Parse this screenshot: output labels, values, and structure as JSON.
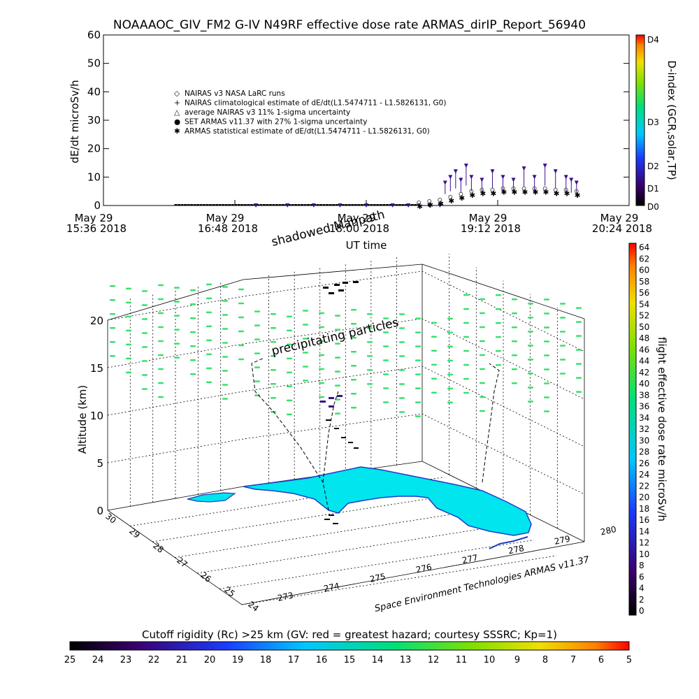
{
  "header": {
    "title": "NOAAAOC_GIV_FM2 G-IV    N49RF   effective dose rate ARMAS_dirIP_Report_56940"
  },
  "chart_data": [
    {
      "type": "scatter",
      "xlabel": "UT time",
      "ylabel": "dE/dt microSv/h",
      "ylim": [
        0,
        60
      ],
      "yticks": [
        "0",
        "10",
        "20",
        "30",
        "40",
        "50",
        "60"
      ],
      "xticks": [
        {
          "date": "May 29",
          "time": "15:36 2018"
        },
        {
          "date": "May 29",
          "time": "16:48 2018"
        },
        {
          "date": "May 29",
          "time": "18:00 2018"
        },
        {
          "date": "May 29",
          "time": "19:12 2018"
        },
        {
          "date": "May 29",
          "time": "20:24 2018"
        }
      ],
      "legend": [
        "NAIRAS v3 NASA LaRC runs",
        "NAIRAS climatological estimate of dE/dt(L1.5474711 - L1.5826131, G0)",
        "average NAIRAS v3 11% 1-sigma uncertainty",
        "SET ARMAS v11.37 with 27% 1-sigma uncertainty",
        "ARMAS statistical estimate of dE/dt(L1.5474711 - L1.5826131, G0)"
      ],
      "legend_position": "upper-left",
      "series": [
        {
          "name": "SET ARMAS v11.37 with 27% 1-sigma uncertainty",
          "x": [
            0.29,
            0.35,
            0.4,
            0.45,
            0.5,
            0.55,
            0.58,
            0.6,
            0.62,
            0.64,
            0.65,
            0.66,
            0.67,
            0.68,
            0.69,
            0.7,
            0.72,
            0.74,
            0.76,
            0.78,
            0.8,
            0.82,
            0.84,
            0.86,
            0.88,
            0.89,
            0.9
          ],
          "y": [
            0,
            0,
            0,
            0,
            0,
            0,
            0,
            0,
            0,
            0,
            8,
            10,
            12,
            9,
            14,
            10,
            9,
            12,
            10,
            9,
            13,
            10,
            14,
            12,
            10,
            9,
            8
          ],
          "color": "#3b0f8c"
        },
        {
          "name": "NAIRAS v3 NASA LaRC runs",
          "x": [
            0.6,
            0.62,
            0.64,
            0.66,
            0.68,
            0.7,
            0.72,
            0.74,
            0.76,
            0.78,
            0.8,
            0.82,
            0.84,
            0.86,
            0.88,
            0.9
          ],
          "y": [
            1,
            1.5,
            2,
            3,
            4,
            5,
            5.5,
            5.5,
            6,
            6,
            6,
            6,
            6,
            5.5,
            5.5,
            5
          ],
          "color": "#555555"
        }
      ]
    },
    {
      "type": "scatter",
      "zlabel": "Altitude (km)",
      "zticks": [
        "0",
        "5",
        "10",
        "15",
        "20"
      ],
      "lat_ticks": [
        "30",
        "29",
        "28",
        "27",
        "26",
        "25",
        "24"
      ],
      "lon_ticks": [
        "273",
        "274",
        "275",
        "276",
        "277",
        "278",
        "279",
        "280"
      ],
      "annotations": [
        "shadowed Mahpath",
        "precipitating particles"
      ],
      "credit": "Space Environment Technologies ARMAS v11.37"
    }
  ],
  "colorbars": {
    "dindex": {
      "label": "D-index (GCR,solar,TP)",
      "ticks": [
        "D4",
        "D3",
        "D2",
        "D1",
        "D0"
      ]
    },
    "dose": {
      "label": "flight effective dose rate microSv/h",
      "ticks": [
        "64",
        "62",
        "60",
        "58",
        "56",
        "54",
        "52",
        "50",
        "48",
        "46",
        "44",
        "42",
        "40",
        "38",
        "36",
        "34",
        "32",
        "30",
        "28",
        "26",
        "24",
        "22",
        "20",
        "18",
        "16",
        "14",
        "12",
        "10",
        "8",
        "6",
        "4",
        "2",
        "0"
      ]
    },
    "cutoff": {
      "label": "Cutoff rigidity (Rc) >25 km (GV: red = greatest hazard; courtesy SSSRC; Kp=1)",
      "ticks": [
        "25",
        "24",
        "23",
        "22",
        "21",
        "20",
        "19",
        "18",
        "17",
        "16",
        "15",
        "14",
        "13",
        "12",
        "11",
        "10",
        "9",
        "8",
        "7",
        "6",
        "5"
      ]
    }
  },
  "colors": {
    "land": "#00e5ee",
    "coast": "#1f3dc8",
    "green_marks": "#39e06b",
    "armas": "#3b0f8c"
  }
}
